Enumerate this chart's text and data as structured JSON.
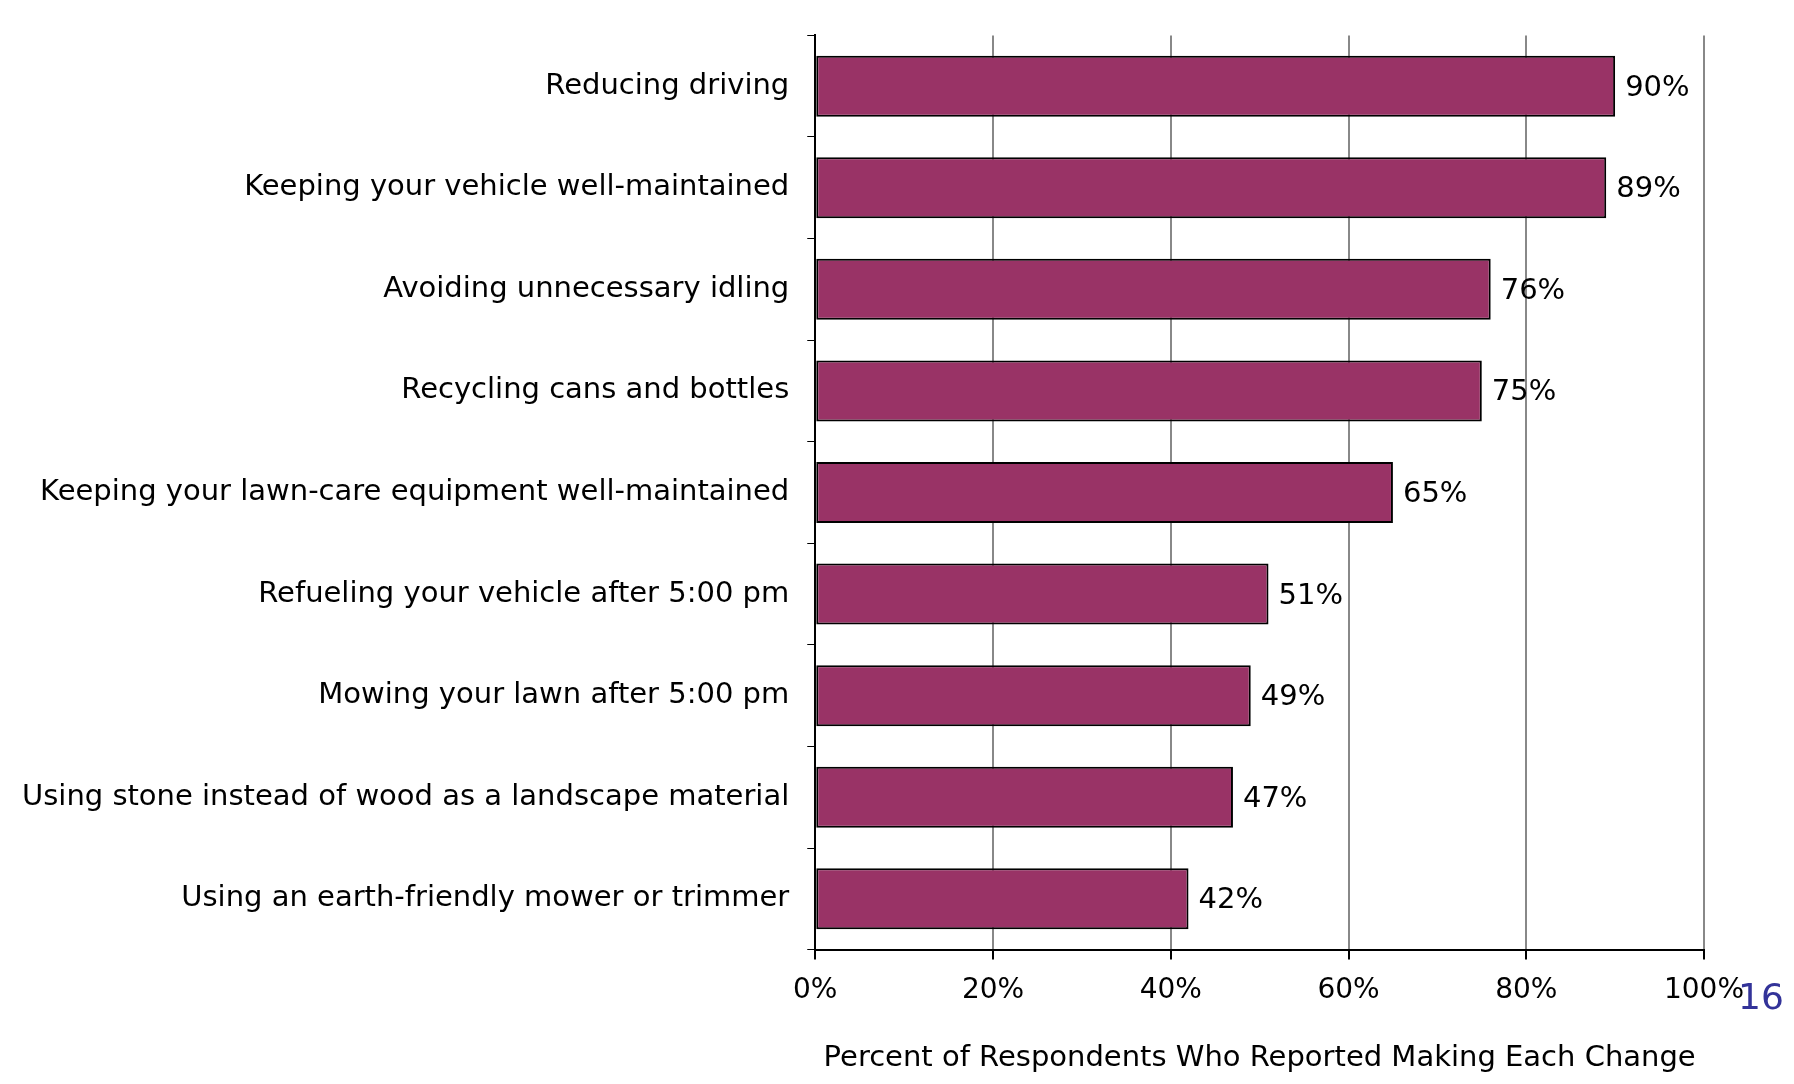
{
  "chart_data": {
    "type": "bar",
    "orientation": "horizontal",
    "xlabel": "Percent of Respondents Who Reported Making Each Change",
    "categories": [
      "Reducing driving",
      "Keeping your vehicle well-maintained",
      "Avoiding unnecessary idling",
      "Recycling cans and bottles",
      "Keeping your lawn-care equipment well-maintained",
      "Refueling your vehicle after 5:00 pm",
      "Mowing your lawn after 5:00 pm",
      "Using stone instead of wood as a landscape material",
      "Using an earth-friendly mower or trimmer"
    ],
    "values": [
      90,
      89,
      76,
      75,
      65,
      51,
      49,
      47,
      42
    ],
    "value_labels": [
      "90%",
      "89%",
      "76%",
      "75%",
      "65%",
      "51%",
      "49%",
      "47%",
      "42%"
    ],
    "color": "#993366",
    "xlim": [
      0,
      100
    ],
    "xticks": [
      {
        "value": 0,
        "label": "0%"
      },
      {
        "value": 20,
        "label": "20%"
      },
      {
        "value": 40,
        "label": "40%"
      },
      {
        "value": 60,
        "label": "60%"
      },
      {
        "value": 80,
        "label": "80%"
      },
      {
        "value": 100,
        "label": "100%"
      }
    ],
    "grid": "x",
    "legend": false,
    "annotations": [
      "16"
    ]
  }
}
